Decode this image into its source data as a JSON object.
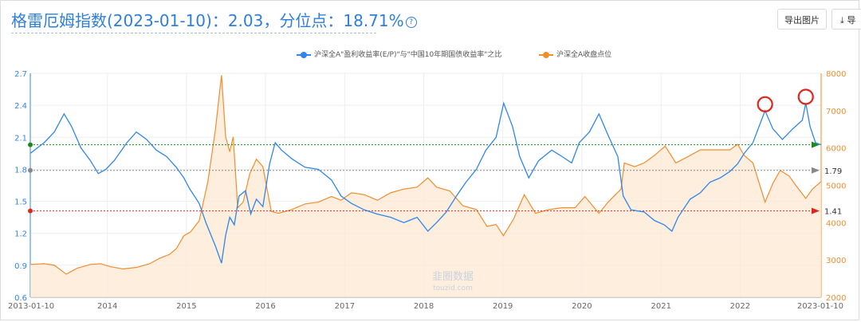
{
  "header": {
    "title": "格雷厄姆指数(2023-01-10)：2.03，分位点：18.71%",
    "help_icon": "?",
    "export_button": "导出图片",
    "download_button": "⤓ 导"
  },
  "watermark": {
    "brand": "韭圈数据",
    "url": "touzid.com"
  },
  "colors": {
    "blue": "#2f86eb",
    "orange": "#f28d2e",
    "orange_fill": "#fde8d3",
    "green": "#1a8a1a",
    "gray": "#888888",
    "red": "#e0261b"
  },
  "chart_data": {
    "type": "line",
    "title": "格雷厄姆指数(2023-01-10)：2.03，分位点：18.71%",
    "legend_position": "top-center",
    "series": [
      {
        "name": "沪深全A\"盈利收益率(E/P)\"与\"中国10年期国债收益率\"之比",
        "axis": "left",
        "style": "line",
        "color": "#2f86eb",
        "points": [
          [
            "2013-01-10",
            1.95
          ],
          [
            "2013-03-15",
            2.05
          ],
          [
            "2013-05-01",
            2.15
          ],
          [
            "2013-06-15",
            2.32
          ],
          [
            "2013-07-20",
            2.2
          ],
          [
            "2013-09-01",
            2.0
          ],
          [
            "2013-10-15",
            1.88
          ],
          [
            "2013-11-20",
            1.76
          ],
          [
            "2013-12-25",
            1.8
          ],
          [
            "2014-02-01",
            1.88
          ],
          [
            "2014-04-01",
            2.05
          ],
          [
            "2014-05-15",
            2.15
          ],
          [
            "2014-07-01",
            2.08
          ],
          [
            "2014-08-15",
            1.98
          ],
          [
            "2014-10-01",
            1.92
          ],
          [
            "2014-11-15",
            1.82
          ],
          [
            "2014-12-20",
            1.72
          ],
          [
            "2015-01-15",
            1.62
          ],
          [
            "2015-03-01",
            1.48
          ],
          [
            "2015-04-01",
            1.3
          ],
          [
            "2015-05-15",
            1.08
          ],
          [
            "2015-06-12",
            0.92
          ],
          [
            "2015-07-01",
            1.18
          ],
          [
            "2015-07-20",
            1.35
          ],
          [
            "2015-08-10",
            1.28
          ],
          [
            "2015-09-01",
            1.55
          ],
          [
            "2015-10-01",
            1.6
          ],
          [
            "2015-10-25",
            1.38
          ],
          [
            "2015-11-20",
            1.52
          ],
          [
            "2015-12-20",
            1.45
          ],
          [
            "2016-01-20",
            1.85
          ],
          [
            "2016-02-15",
            2.05
          ],
          [
            "2016-03-15",
            1.98
          ],
          [
            "2016-05-01",
            1.9
          ],
          [
            "2016-07-01",
            1.82
          ],
          [
            "2016-09-01",
            1.8
          ],
          [
            "2016-11-01",
            1.7
          ],
          [
            "2016-12-15",
            1.55
          ],
          [
            "2017-02-01",
            1.48
          ],
          [
            "2017-04-01",
            1.42
          ],
          [
            "2017-06-01",
            1.38
          ],
          [
            "2017-08-01",
            1.35
          ],
          [
            "2017-10-01",
            1.3
          ],
          [
            "2017-12-01",
            1.35
          ],
          [
            "2018-01-20",
            1.22
          ],
          [
            "2018-03-01",
            1.3
          ],
          [
            "2018-04-15",
            1.4
          ],
          [
            "2018-06-01",
            1.55
          ],
          [
            "2018-07-15",
            1.68
          ],
          [
            "2018-09-01",
            1.8
          ],
          [
            "2018-10-15",
            1.98
          ],
          [
            "2018-12-01",
            2.1
          ],
          [
            "2019-01-05",
            2.42
          ],
          [
            "2019-02-15",
            2.2
          ],
          [
            "2019-03-20",
            1.92
          ],
          [
            "2019-05-01",
            1.72
          ],
          [
            "2019-06-15",
            1.88
          ],
          [
            "2019-08-15",
            1.98
          ],
          [
            "2019-10-01",
            1.92
          ],
          [
            "2019-11-15",
            1.86
          ],
          [
            "2019-12-20",
            2.05
          ],
          [
            "2020-02-05",
            2.15
          ],
          [
            "2020-03-20",
            2.32
          ],
          [
            "2020-05-01",
            2.12
          ],
          [
            "2020-06-15",
            1.92
          ],
          [
            "2020-07-10",
            1.55
          ],
          [
            "2020-08-15",
            1.42
          ],
          [
            "2020-10-15",
            1.4
          ],
          [
            "2020-12-01",
            1.32
          ],
          [
            "2021-01-15",
            1.28
          ],
          [
            "2021-02-20",
            1.22
          ],
          [
            "2021-03-20",
            1.35
          ],
          [
            "2021-05-15",
            1.52
          ],
          [
            "2021-07-01",
            1.58
          ],
          [
            "2021-08-15",
            1.68
          ],
          [
            "2021-10-01",
            1.72
          ],
          [
            "2021-11-15",
            1.78
          ],
          [
            "2021-12-20",
            1.85
          ],
          [
            "2022-01-20",
            1.95
          ],
          [
            "2022-03-01",
            2.05
          ],
          [
            "2022-04-26",
            2.35
          ],
          [
            "2022-06-01",
            2.18
          ],
          [
            "2022-07-15",
            2.08
          ],
          [
            "2022-09-01",
            2.18
          ],
          [
            "2022-10-15",
            2.26
          ],
          [
            "2022-10-31",
            2.42
          ],
          [
            "2022-11-20",
            2.2
          ],
          [
            "2022-12-15",
            2.05
          ],
          [
            "2023-01-10",
            2.03
          ]
        ]
      },
      {
        "name": "沪深全A收盘点位",
        "axis": "right",
        "style": "area",
        "color": "#f28d2e",
        "points": [
          [
            "2013-01-10",
            2880
          ],
          [
            "2013-03-15",
            2900
          ],
          [
            "2013-05-01",
            2860
          ],
          [
            "2013-06-25",
            2620
          ],
          [
            "2013-08-15",
            2780
          ],
          [
            "2013-10-15",
            2880
          ],
          [
            "2013-12-01",
            2900
          ],
          [
            "2014-01-15",
            2820
          ],
          [
            "2014-03-15",
            2760
          ],
          [
            "2014-05-15",
            2800
          ],
          [
            "2014-07-15",
            2900
          ],
          [
            "2014-09-01",
            3050
          ],
          [
            "2014-10-15",
            3150
          ],
          [
            "2014-11-15",
            3300
          ],
          [
            "2014-12-20",
            3650
          ],
          [
            "2015-01-20",
            3750
          ],
          [
            "2015-03-01",
            4050
          ],
          [
            "2015-04-10",
            5100
          ],
          [
            "2015-05-15",
            6500
          ],
          [
            "2015-06-12",
            7950
          ],
          [
            "2015-07-01",
            6300
          ],
          [
            "2015-07-20",
            5900
          ],
          [
            "2015-08-05",
            6300
          ],
          [
            "2015-08-26",
            4400
          ],
          [
            "2015-09-20",
            4550
          ],
          [
            "2015-10-20",
            5300
          ],
          [
            "2015-11-20",
            5700
          ],
          [
            "2015-12-20",
            5500
          ],
          [
            "2016-01-28",
            4300
          ],
          [
            "2016-03-01",
            4250
          ],
          [
            "2016-05-01",
            4350
          ],
          [
            "2016-07-01",
            4500
          ],
          [
            "2016-09-01",
            4550
          ],
          [
            "2016-11-01",
            4700
          ],
          [
            "2016-12-15",
            4600
          ],
          [
            "2017-02-01",
            4800
          ],
          [
            "2017-04-01",
            4750
          ],
          [
            "2017-06-01",
            4600
          ],
          [
            "2017-08-01",
            4800
          ],
          [
            "2017-10-01",
            4900
          ],
          [
            "2017-12-01",
            4950
          ],
          [
            "2018-01-20",
            5200
          ],
          [
            "2018-03-01",
            4950
          ],
          [
            "2018-05-01",
            4850
          ],
          [
            "2018-07-01",
            4450
          ],
          [
            "2018-09-01",
            4350
          ],
          [
            "2018-10-20",
            3900
          ],
          [
            "2018-12-01",
            3950
          ],
          [
            "2019-01-04",
            3650
          ],
          [
            "2019-02-20",
            4100
          ],
          [
            "2019-04-10",
            4750
          ],
          [
            "2019-06-01",
            4250
          ],
          [
            "2019-08-01",
            4350
          ],
          [
            "2019-10-01",
            4400
          ],
          [
            "2019-12-01",
            4400
          ],
          [
            "2020-01-15",
            4700
          ],
          [
            "2020-03-20",
            4250
          ],
          [
            "2020-05-01",
            4550
          ],
          [
            "2020-06-30",
            4900
          ],
          [
            "2020-07-15",
            5600
          ],
          [
            "2020-09-01",
            5500
          ],
          [
            "2020-10-15",
            5600
          ],
          [
            "2020-12-01",
            5800
          ],
          [
            "2021-01-20",
            6050
          ],
          [
            "2021-03-10",
            5600
          ],
          [
            "2021-05-15",
            5800
          ],
          [
            "2021-07-01",
            5950
          ],
          [
            "2021-09-15",
            5950
          ],
          [
            "2021-11-15",
            5950
          ],
          [
            "2021-12-20",
            6100
          ],
          [
            "2022-01-20",
            5800
          ],
          [
            "2022-03-01",
            5600
          ],
          [
            "2022-04-26",
            4550
          ],
          [
            "2022-06-01",
            5050
          ],
          [
            "2022-07-05",
            5400
          ],
          [
            "2022-08-15",
            5250
          ],
          [
            "2022-09-15",
            5000
          ],
          [
            "2022-10-31",
            4650
          ],
          [
            "2022-12-01",
            4900
          ],
          [
            "2023-01-10",
            5100
          ]
        ]
      }
    ],
    "reference_lines": [
      {
        "value": 2.03,
        "color": "#1a8a1a",
        "label": "",
        "axis": "left"
      },
      {
        "value": 1.79,
        "color": "#888888",
        "label": "1.79",
        "axis": "left"
      },
      {
        "value": 1.41,
        "color": "#e0261b",
        "label": "1.41",
        "axis": "left"
      }
    ],
    "highlight_markers": [
      {
        "date": "2022-04-26",
        "value": 2.35
      },
      {
        "date": "2022-10-31",
        "value": 2.42
      }
    ],
    "x_range": [
      "2013-01-10",
      "2023-01-10"
    ],
    "x_ticks": [
      "2013-01-10",
      "2014",
      "2015",
      "2016",
      "2017",
      "2018",
      "2019",
      "2020",
      "2021",
      "2022",
      "2023-01-10"
    ],
    "y_left": {
      "range": [
        0.6,
        2.7
      ],
      "ticks": [
        "0.6",
        "0.9",
        "1.2",
        "1.5",
        "1.8",
        "2.1",
        "2.4",
        "2.7"
      ]
    },
    "y_right": {
      "range": [
        2000,
        8000
      ],
      "ticks": [
        "2000",
        "3000",
        "4000",
        "5000",
        "6000",
        "7000",
        "8000"
      ]
    },
    "grid": true
  }
}
